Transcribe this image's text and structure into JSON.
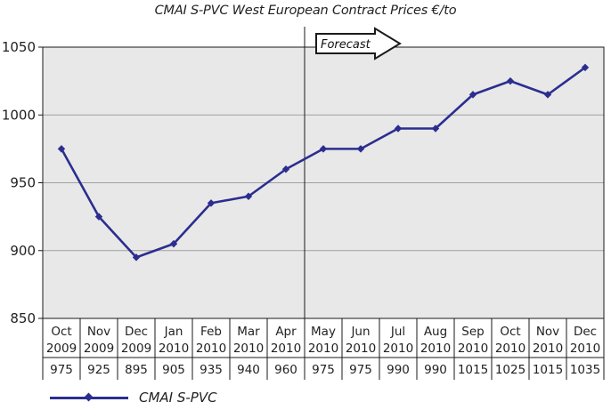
{
  "chart_data": {
    "type": "line",
    "title": "CMAI S-PVC West European Contract Prices €/to",
    "xlabel": "",
    "ylabel": "",
    "ylim": [
      850,
      1050
    ],
    "yticks": [
      850,
      900,
      950,
      1000,
      1050
    ],
    "grid": true,
    "categories": [
      {
        "month": "Oct",
        "year": "2009"
      },
      {
        "month": "Nov",
        "year": "2009"
      },
      {
        "month": "Dec",
        "year": "2009"
      },
      {
        "month": "Jan",
        "year": "2010"
      },
      {
        "month": "Feb",
        "year": "2010"
      },
      {
        "month": "Mar",
        "year": "2010"
      },
      {
        "month": "Apr",
        "year": "2010"
      },
      {
        "month": "May",
        "year": "2010"
      },
      {
        "month": "Jun",
        "year": "2010"
      },
      {
        "month": "Jul",
        "year": "2010"
      },
      {
        "month": "Aug",
        "year": "2010"
      },
      {
        "month": "Sep",
        "year": "2010"
      },
      {
        "month": "Oct",
        "year": "2010"
      },
      {
        "month": "Nov",
        "year": "2010"
      },
      {
        "month": "Dec",
        "year": "2010"
      }
    ],
    "series": [
      {
        "name": "CMAI S-PVC",
        "color": "#2b2e8f",
        "values": [
          975,
          925,
          895,
          905,
          935,
          940,
          960,
          975,
          975,
          990,
          990,
          1015,
          1025,
          1015,
          1035
        ],
        "table_values": [
          "975",
          "925",
          "895",
          "905",
          "935",
          "940",
          "960",
          "975",
          "975",
          "990",
          "990",
          "1015",
          "1025",
          "1015",
          "1035"
        ]
      }
    ],
    "annotations": [
      {
        "text": "Forecast",
        "type": "arrow",
        "starts_after_category_index": 6
      }
    ],
    "legend": {
      "placement": "bottom-left",
      "label": "CMAI S-PVC"
    },
    "plot_background": "#e8e8e8",
    "gridline_color": "#a0a0a0"
  }
}
